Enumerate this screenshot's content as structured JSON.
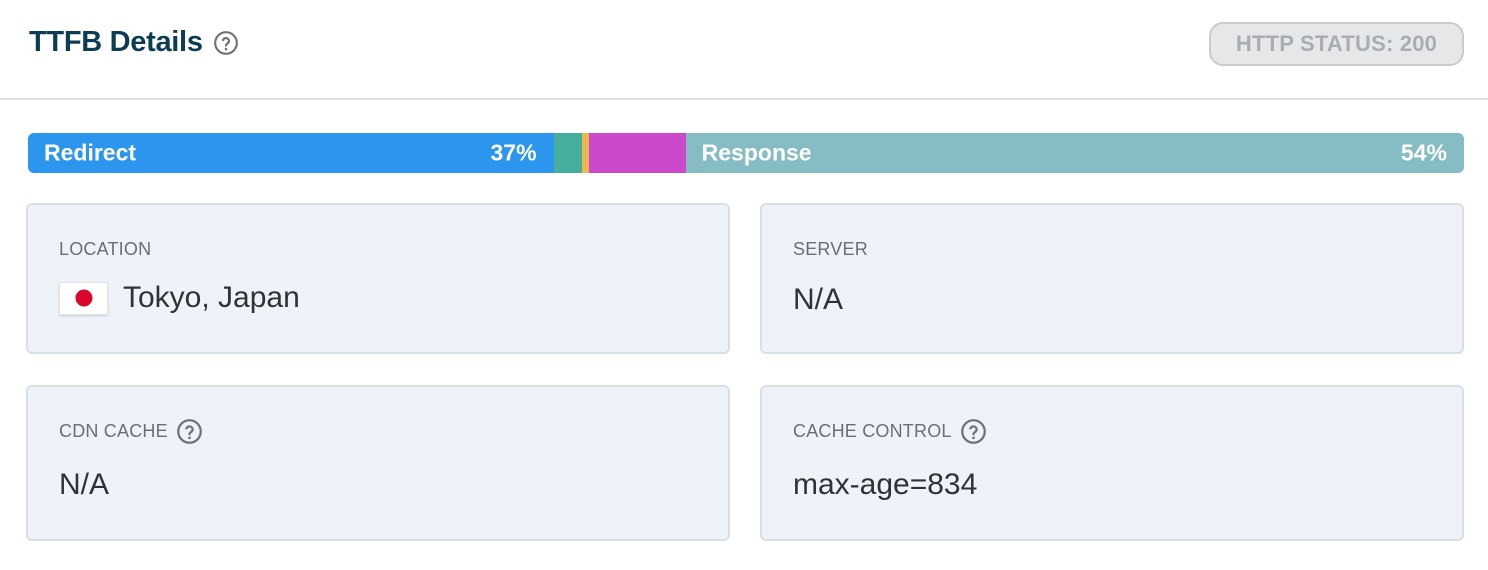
{
  "header": {
    "title": "TTFB Details",
    "help_icon": "question-circle-icon",
    "http_status_label": "HTTP STATUS: 200"
  },
  "ttfb_bar": {
    "segments": [
      {
        "name": "redirect",
        "label": "Redirect",
        "percent_text": "37%",
        "fraction": 0.366,
        "color": "#2c95ed"
      },
      {
        "name": "dns",
        "label": "",
        "percent_text": "",
        "fraction": 0.02,
        "color": "#46ae9d"
      },
      {
        "name": "connect",
        "label": "",
        "percent_text": "",
        "fraction": 0.005,
        "color": "#eab84c"
      },
      {
        "name": "tls",
        "label": "",
        "percent_text": "",
        "fraction": 0.067,
        "color": "#cd49cb"
      },
      {
        "name": "response",
        "label": "Response",
        "percent_text": "54%",
        "fraction": 0.542,
        "color": "#86bcc4"
      }
    ]
  },
  "cards": {
    "location": {
      "label": "LOCATION",
      "value": "Tokyo, Japan",
      "flag_icon": "japan-flag-icon"
    },
    "server": {
      "label": "SERVER",
      "value": "N/A"
    },
    "cdn_cache": {
      "label": "CDN CACHE",
      "value": "N/A",
      "help_icon": "question-circle-icon"
    },
    "cache_control": {
      "label": "CACHE CONTROL",
      "value": "max-age=834",
      "help_icon": "question-circle-icon"
    }
  },
  "colors": {
    "title": "#0b3d55",
    "card_background": "#edf3f9",
    "card_border": "#d9dfe5",
    "badge_background": "#e6e7e8",
    "badge_text": "#a9adb1"
  }
}
